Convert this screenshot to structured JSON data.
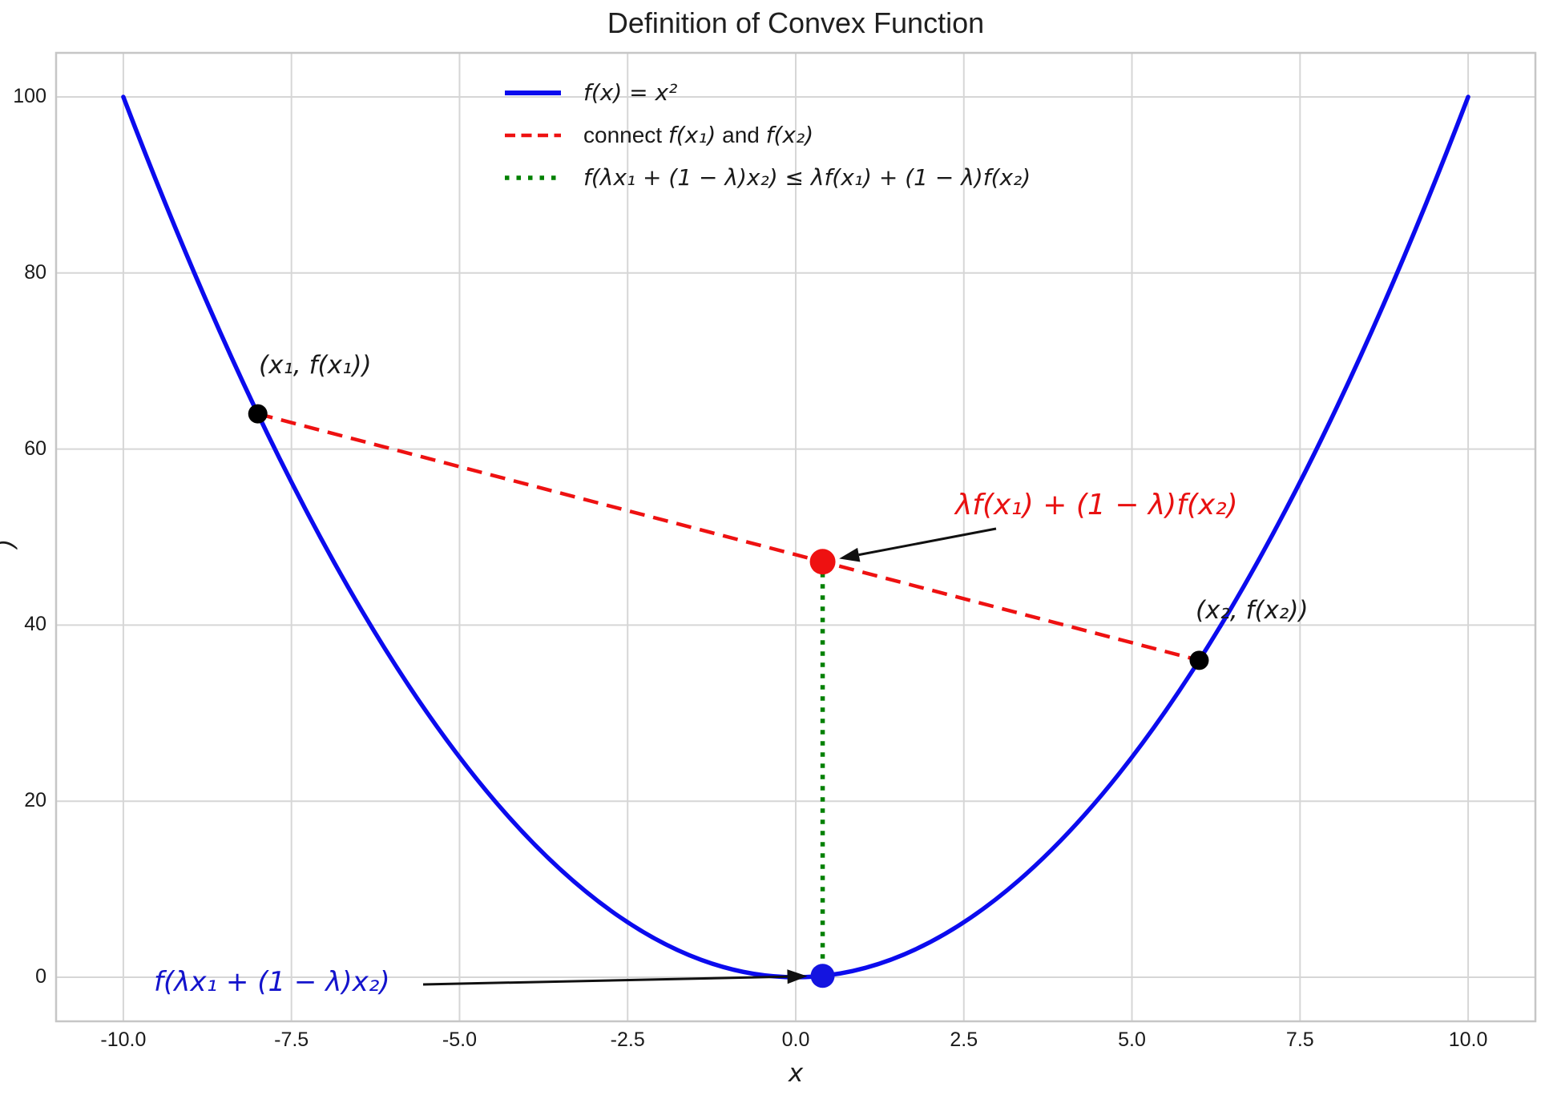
{
  "title": "Definition of Convex Function",
  "axes": {
    "xlabel": "x",
    "ylabel_visible_fragment": ")",
    "x_ticks": [
      "-10.0",
      "-7.5",
      "-5.0",
      "-2.5",
      "0.0",
      "2.5",
      "5.0",
      "7.5",
      "10.0"
    ],
    "y_ticks": [
      "0",
      "20",
      "40",
      "60",
      "80",
      "100"
    ]
  },
  "legend": {
    "items": [
      {
        "label": "f(x) = x²",
        "color": "#0b0bee",
        "style": "solid"
      },
      {
        "parts": [
          "connect ",
          "f(x₁)",
          " and ",
          "f(x₂)"
        ],
        "color": "#ee1111",
        "style": "dashed"
      },
      {
        "label": "f(λx₁ + (1 − λ)x₂) ≤ λf(x₁) + (1 − λ)f(x₂)",
        "color": "#008000",
        "style": "dotted"
      }
    ]
  },
  "annotations": {
    "point1_label": "(x₁, f(x₁))",
    "point2_label": "(x₂, f(x₂))",
    "chord_value_label": "λf(x₁) + (1 − λ)f(x₂)",
    "function_value_label": "f(λx₁ + (1 − λ)x₂)"
  },
  "colors": {
    "curve": "#0b0bee",
    "chord": "#ee1111",
    "vertical": "#008000",
    "marker_black": "#000000",
    "marker_red": "#ee1111",
    "marker_blue": "#1414e0",
    "grid": "#d6d6d6",
    "spine": "#c6c6c6",
    "arrow": "#111111",
    "text": "#1a1a1a"
  },
  "chart_data": {
    "type": "line",
    "title": "Definition of Convex Function",
    "xlabel": "x",
    "ylabel": "",
    "xlim": [
      -11,
      11
    ],
    "ylim": [
      -5,
      105
    ],
    "x_ticks": [
      -10,
      -7.5,
      -5,
      -2.5,
      0,
      2.5,
      5,
      7.5,
      10
    ],
    "y_ticks": [
      0,
      20,
      40,
      60,
      80,
      100
    ],
    "grid": true,
    "legend_position": "upper center-left",
    "lambda": 0.4,
    "x1": -8,
    "x2": 6,
    "series": [
      {
        "name": "f(x) = x²",
        "style": "solid",
        "color": "#0b0bee",
        "formula": "y = x^2",
        "x_range": [
          -10,
          10
        ],
        "bezier": {
          "p0": [
            -10,
            100
          ],
          "control": [
            0,
            -100
          ],
          "p2": [
            10,
            100
          ]
        },
        "sample_points": [
          [
            -10,
            100
          ],
          [
            -7.5,
            56.25
          ],
          [
            -5,
            25
          ],
          [
            -2.5,
            6.25
          ],
          [
            0,
            0
          ],
          [
            2.5,
            6.25
          ],
          [
            5,
            25
          ],
          [
            7.5,
            56.25
          ],
          [
            10,
            100
          ]
        ]
      },
      {
        "name": "connect f(x₁) and f(x₂)",
        "style": "dashed",
        "color": "#ee1111",
        "points": [
          [
            -8,
            64
          ],
          [
            6,
            36
          ]
        ]
      },
      {
        "name": "f(λx₁ + (1 − λ)x₂) ≤ λf(x₁) + (1 − λ)f(x₂)",
        "style": "dotted",
        "color": "#008000",
        "points": [
          [
            0.4,
            47.2
          ],
          [
            0.4,
            0.16
          ]
        ]
      }
    ],
    "markers": [
      {
        "label": "(x₁, f(x₁))",
        "x": -8,
        "y": 64,
        "color": "#000000"
      },
      {
        "label": "(x₂, f(x₂))",
        "x": 6,
        "y": 36,
        "color": "#000000"
      },
      {
        "label": "λf(x₁) + (1 − λ)f(x₂)",
        "x": 0.4,
        "y": 47.2,
        "color": "#ee1111"
      },
      {
        "label": "f(λx₁ + (1 − λ)x₂)",
        "x": 0.4,
        "y": 0.16,
        "color": "#1414e0"
      }
    ]
  }
}
